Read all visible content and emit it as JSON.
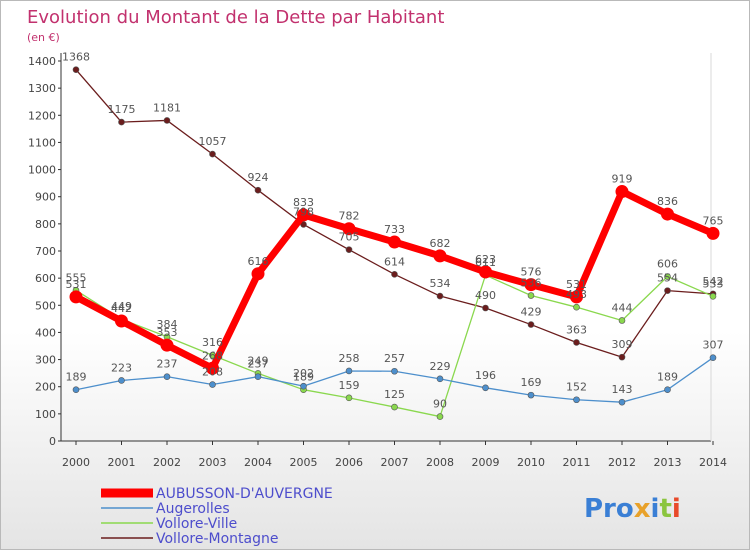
{
  "chart_data": {
    "type": "line",
    "title": "Evolution du Montant de la Dette par Habitant",
    "subtitle": "(en €)",
    "x": [
      "2000",
      "2001",
      "2002",
      "2003",
      "2004",
      "2005",
      "2006",
      "2007",
      "2008",
      "2009",
      "2010",
      "2011",
      "2012",
      "2013",
      "2014"
    ],
    "ylim": [
      0,
      1400
    ],
    "yticks": [
      0,
      100,
      200,
      300,
      400,
      500,
      600,
      700,
      800,
      900,
      1000,
      1100,
      1200,
      1300,
      1400
    ],
    "grid": false,
    "legend_position": "bottom-left",
    "series": [
      {
        "name": "Vollore-Montagne",
        "color": "#6b1d1d",
        "values": [
          1368,
          1175,
          1181,
          1057,
          924,
          798,
          705,
          614,
          534,
          490,
          429,
          363,
          309,
          554,
          542
        ]
      },
      {
        "name": "Vollore-Ville",
        "color": "#8ad84e",
        "values": [
          555,
          449,
          384,
          316,
          249,
          189,
          159,
          125,
          90,
          611,
          536,
          493,
          444,
          606,
          533
        ]
      },
      {
        "name": "Augerolles",
        "color": "#4d8fcc",
        "values": [
          189,
          223,
          237,
          208,
          237,
          202,
          258,
          257,
          229,
          196,
          169,
          152,
          143,
          189,
          307
        ]
      },
      {
        "name": "AUBUSSON-D'AUVERGNE",
        "color": "#ff0000",
        "values": [
          531,
          442,
          353,
          268,
          616,
          833,
          782,
          733,
          682,
          623,
          576,
          531,
          919,
          836,
          765
        ]
      }
    ],
    "data_labels": {
      "Vollore-Montagne": [
        "1368",
        "1175",
        "1181",
        "1057",
        "924",
        "798",
        "705",
        "614",
        "534",
        "490",
        "429",
        "363",
        "309",
        "554",
        "542"
      ],
      "Vollore-Ville": [
        "555",
        "449",
        "384",
        "316",
        "249",
        "189",
        "159",
        "125",
        "90",
        "611",
        "536",
        "493",
        "444",
        "606",
        "533"
      ],
      "Augerolles": [
        "189",
        "223",
        "237",
        "208",
        "237",
        "202",
        "258",
        "257",
        "229",
        "196",
        "169",
        "152",
        "143",
        "189",
        "307"
      ],
      "AUBUSSON-D'AUVERGNE": [
        "531",
        "442",
        "353",
        "268",
        "616",
        "833",
        "782",
        "733",
        "682",
        "623",
        "576",
        "531",
        "919",
        "836",
        "765"
      ]
    }
  },
  "legend": {
    "items": [
      {
        "label": "AUBUSSON-D'AUVERGNE",
        "color": "#ff0000"
      },
      {
        "label": "Augerolles",
        "color": "#4d8fcc"
      },
      {
        "label": "Vollore-Ville",
        "color": "#8ad84e"
      },
      {
        "label": "Vollore-Montagne",
        "color": "#6b1d1d"
      }
    ]
  },
  "logo": {
    "text": "Proxiti",
    "colors": [
      "#3a7fd5",
      "#e8a12a",
      "#8bc53f",
      "#e84a2a"
    ]
  }
}
